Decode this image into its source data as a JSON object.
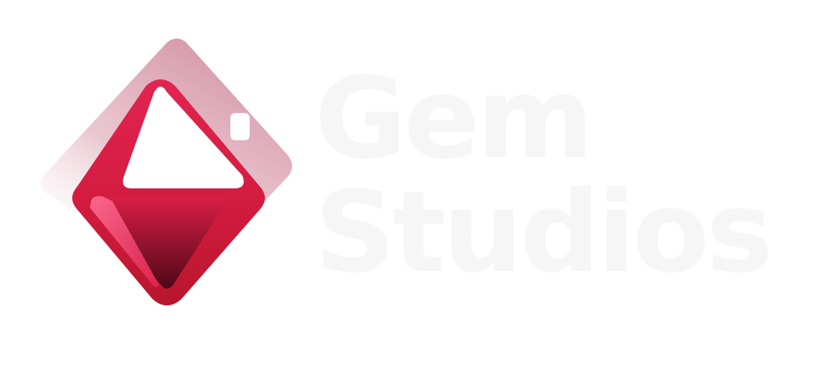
{
  "brand": {
    "name_line1": "Gem",
    "name_line2": "Studios",
    "colors": {
      "primary_red": "#d81d4a",
      "dark_red": "#5a0a1a",
      "shadow_pink": "#d79aa9",
      "wordmark": "#f6f6f6",
      "background": "#ffffff"
    },
    "icon": "gem-diamond-icon"
  }
}
